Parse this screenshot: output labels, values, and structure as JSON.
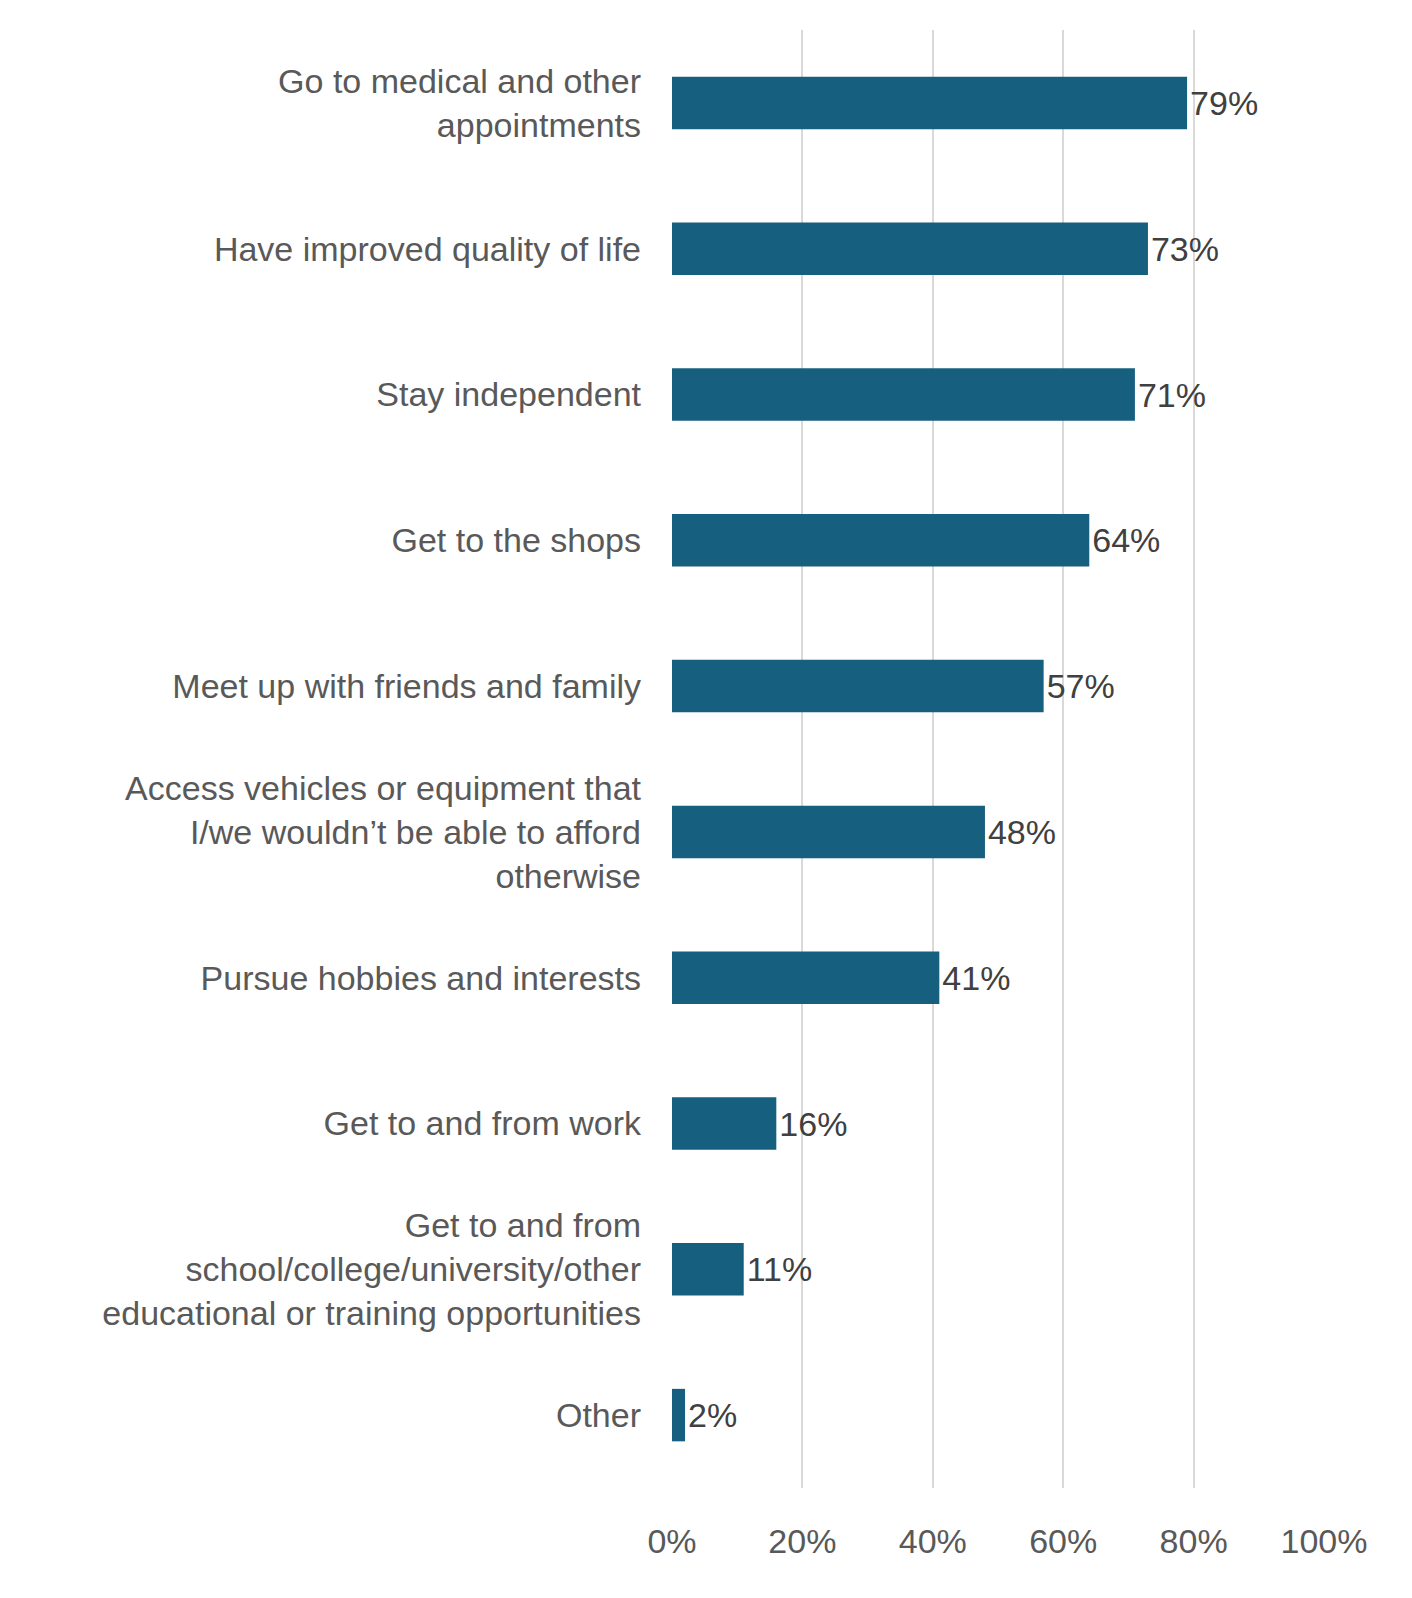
{
  "chart_data": {
    "type": "bar",
    "orientation": "horizontal",
    "categories": [
      "Go to medical and other\nappointments",
      "Have improved quality of life",
      "Stay independent",
      "Get to the shops",
      "Meet up with friends and family",
      "Access vehicles or equipment that\nI/we wouldn’t be able to afford\notherwise",
      "Pursue hobbies and interests",
      "Get to and from work",
      "Get to and from\nschool/college/university/other\neducational or training opportunities",
      "Other"
    ],
    "values": [
      79,
      73,
      71,
      64,
      57,
      48,
      41,
      16,
      11,
      2
    ],
    "value_labels": [
      "79%",
      "73%",
      "71%",
      "64%",
      "57%",
      "48%",
      "41%",
      "16%",
      "11%",
      "2%"
    ],
    "data_labels": true,
    "color": "#175f7f",
    "xlim": [
      0,
      100
    ],
    "xticks": [
      {
        "value": 0,
        "label": "0%"
      },
      {
        "value": 20,
        "label": "20%"
      },
      {
        "value": 40,
        "label": "40%"
      },
      {
        "value": 60,
        "label": "60%"
      },
      {
        "value": 80,
        "label": "80%"
      },
      {
        "value": 100,
        "label": "100%"
      }
    ],
    "grid": true
  }
}
